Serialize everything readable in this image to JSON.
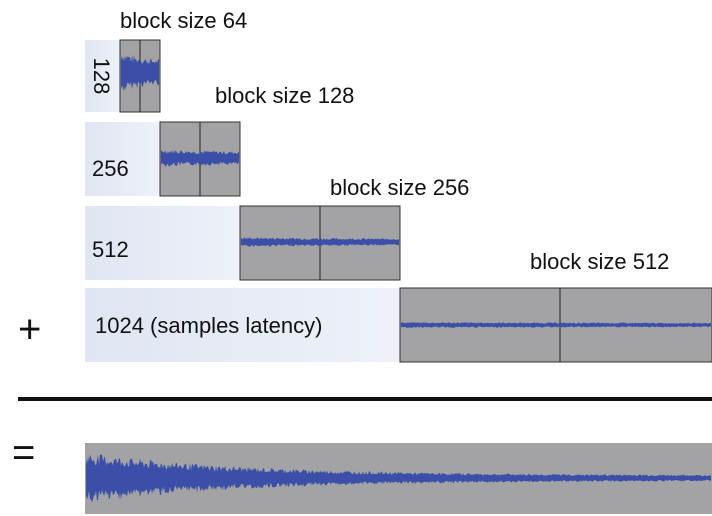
{
  "blocks": [
    {
      "title": "block size 64",
      "latency": "128"
    },
    {
      "title": "block size 128",
      "latency": "256"
    },
    {
      "title": "block size 256",
      "latency": "512"
    },
    {
      "title": "block size 512",
      "latency": "1024 (samples latency)"
    }
  ],
  "operators": {
    "plus": "+",
    "equals": "="
  }
}
